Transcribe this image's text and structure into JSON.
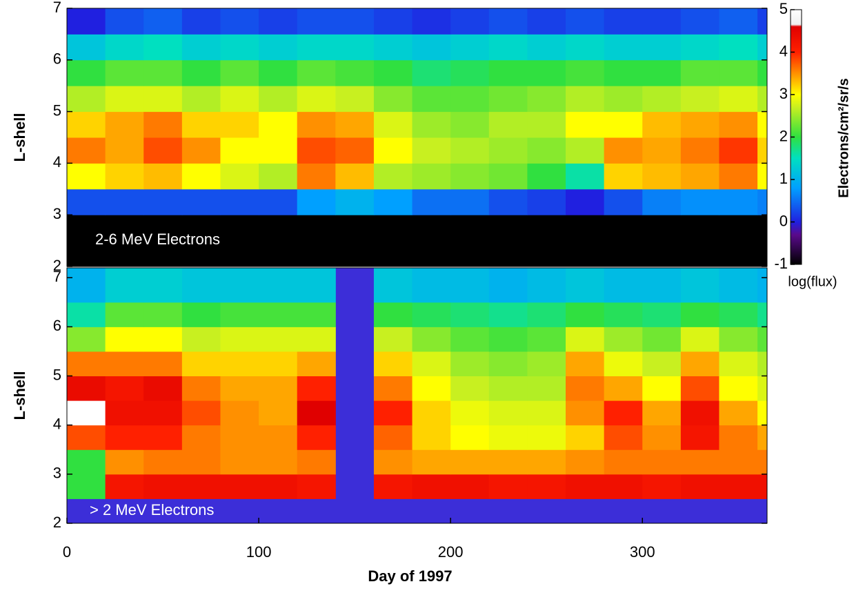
{
  "chart_data": [
    {
      "type": "heatmap",
      "annotation": "2-6 MeV Electrons",
      "ylabel": "L-shell",
      "background": "#000000",
      "xlim": [
        0,
        365
      ],
      "ylim": [
        2,
        7
      ],
      "yticks": [
        2,
        3,
        4,
        5,
        6,
        7
      ],
      "xbins": [
        0,
        20,
        40,
        60,
        80,
        100,
        120,
        140,
        160,
        180,
        200,
        220,
        240,
        260,
        280,
        300,
        320,
        340,
        360,
        365
      ],
      "ybins": [
        2,
        2.5,
        3,
        3.5,
        4,
        4.5,
        5,
        5.5,
        6,
        6.5,
        7
      ],
      "z": [
        [
          -1,
          -1,
          -1,
          -1,
          -1,
          -1,
          -1,
          -1,
          -1,
          -1,
          -1,
          -1,
          -1,
          -1,
          -1,
          -1,
          -1,
          -1,
          -1
        ],
        [
          -1,
          -1,
          -1,
          -1,
          -1,
          -1,
          -1,
          -1,
          -1,
          -1,
          -1,
          -1,
          -1,
          -1,
          -1,
          -1,
          -1,
          -1,
          -1
        ],
        [
          0.3,
          0.3,
          0.3,
          0.3,
          0.3,
          0.3,
          0.8,
          1.0,
          0.8,
          0.5,
          0.5,
          0.3,
          0.2,
          0,
          0.3,
          0.6,
          0.7,
          0.7,
          0.6
        ],
        [
          3,
          3.2,
          3.3,
          3,
          2.8,
          2.6,
          3.6,
          3.3,
          2.6,
          2.5,
          2.4,
          2.3,
          2.0,
          1.6,
          3.2,
          3.3,
          3.4,
          3.6,
          3.0
        ],
        [
          3.6,
          3.4,
          3.8,
          3.5,
          3.0,
          3.0,
          3.8,
          3.7,
          3.0,
          2.7,
          2.6,
          2.5,
          2.4,
          2.6,
          3.5,
          3.4,
          3.6,
          3.9,
          3.2
        ],
        [
          3.2,
          3.4,
          3.6,
          3.2,
          3.2,
          3.0,
          3.5,
          3.4,
          2.8,
          2.5,
          2.4,
          2.6,
          2.6,
          3.0,
          3.0,
          3.3,
          3.4,
          3.5,
          3.0
        ],
        [
          2.6,
          2.8,
          2.8,
          2.6,
          2.8,
          2.6,
          2.8,
          2.7,
          2.4,
          2.2,
          2.2,
          2.3,
          2.4,
          2.6,
          2.5,
          2.6,
          2.7,
          2.8,
          2.6
        ],
        [
          2.0,
          2.2,
          2.2,
          2.0,
          2.2,
          2.0,
          2.2,
          2.1,
          2.0,
          1.8,
          1.9,
          2.0,
          2.0,
          2.1,
          2.0,
          2.0,
          2.2,
          2.2,
          2.0
        ],
        [
          1.2,
          1.4,
          1.5,
          1.3,
          1.4,
          1.3,
          1.4,
          1.4,
          1.3,
          1.2,
          1.3,
          1.4,
          1.3,
          1.4,
          1.3,
          1.3,
          1.4,
          1.5,
          1.3
        ],
        [
          0,
          0.3,
          0.4,
          0.2,
          0.3,
          0.2,
          0.3,
          0.3,
          0.2,
          0.1,
          0.2,
          0.3,
          0.2,
          0.3,
          0.2,
          0.2,
          0.3,
          0.4,
          0.2
        ]
      ],
      "colorbar": {
        "label": "Electrons/cm²/sr/s",
        "sublabel": "log(flux)",
        "zlim": [
          -1,
          5
        ],
        "zticks": [
          -1,
          0,
          1,
          2,
          3,
          4,
          5
        ],
        "colorscale": [
          [
            -1,
            "#000000"
          ],
          [
            -0.3,
            "#5a0a8c"
          ],
          [
            0,
            "#2020e0"
          ],
          [
            0.8,
            "#00a0ff"
          ],
          [
            1.5,
            "#00e0c0"
          ],
          [
            2,
            "#30e040"
          ],
          [
            2.7,
            "#c8f020"
          ],
          [
            3,
            "#ffff00"
          ],
          [
            3.5,
            "#ff9000"
          ],
          [
            4,
            "#ff2000"
          ],
          [
            4.6,
            "#e00000"
          ],
          [
            4.65,
            "#f0f0f0"
          ],
          [
            5,
            "#ffffff"
          ]
        ]
      }
    },
    {
      "type": "heatmap",
      "annotation": "> 2 MeV Electrons",
      "ylabel": "L-shell",
      "xlabel": "Day of 1997",
      "background": "#3c2ed8",
      "xlim": [
        0,
        365
      ],
      "ylim": [
        2,
        7.2
      ],
      "yticks": [
        2,
        3,
        4,
        5,
        6,
        7
      ],
      "xticks": [
        0,
        100,
        200,
        300
      ],
      "xbins": [
        0,
        20,
        40,
        60,
        80,
        100,
        120,
        140,
        160,
        180,
        200,
        220,
        240,
        260,
        280,
        300,
        320,
        340,
        360,
        365
      ],
      "ybins": [
        2,
        2.5,
        3,
        3.5,
        4,
        4.5,
        5,
        5.5,
        6,
        6.5,
        7.2
      ],
      "z": [
        [
          null,
          null,
          null,
          null,
          null,
          null,
          null,
          null,
          null,
          null,
          null,
          null,
          null,
          null,
          null,
          null,
          null,
          null,
          null
        ],
        [
          2.0,
          4.2,
          4.3,
          4.3,
          4.3,
          4.3,
          4.2,
          null,
          4.2,
          4.3,
          4.3,
          4.2,
          4.2,
          4.3,
          4.3,
          4.2,
          4.3,
          4.3,
          4.3
        ],
        [
          2.0,
          3.5,
          3.6,
          3.6,
          3.5,
          3.5,
          3.6,
          null,
          3.5,
          3.4,
          3.4,
          3.4,
          3.4,
          3.5,
          3.6,
          3.6,
          3.6,
          3.6,
          3.6
        ],
        [
          3.8,
          4.0,
          4.0,
          3.6,
          3.5,
          3.5,
          4.0,
          null,
          3.7,
          3.2,
          3.0,
          2.9,
          2.9,
          3.2,
          3.8,
          3.5,
          4.2,
          3.6,
          3.4
        ],
        [
          5.0,
          4.3,
          4.3,
          3.8,
          3.5,
          3.4,
          4.6,
          null,
          4.0,
          3.2,
          2.9,
          2.8,
          2.8,
          3.5,
          4.0,
          3.4,
          4.3,
          3.4,
          3.0
        ],
        [
          4.4,
          4.2,
          4.4,
          3.6,
          3.4,
          3.4,
          4.0,
          null,
          3.6,
          3.0,
          2.7,
          2.6,
          2.6,
          3.6,
          3.4,
          3.0,
          3.8,
          3.0,
          2.8
        ],
        [
          3.6,
          3.6,
          3.6,
          3.2,
          3.2,
          3.2,
          3.4,
          null,
          3.2,
          2.8,
          2.5,
          2.4,
          2.5,
          3.4,
          2.9,
          2.7,
          3.4,
          2.8,
          2.6
        ],
        [
          2.4,
          3.0,
          3.0,
          2.7,
          2.8,
          2.8,
          2.8,
          null,
          2.7,
          2.4,
          2.2,
          2.1,
          2.2,
          2.8,
          2.5,
          2.3,
          2.8,
          2.4,
          2.2
        ],
        [
          1.6,
          2.2,
          2.2,
          2.0,
          2.1,
          2.1,
          2.1,
          null,
          2.0,
          1.9,
          1.8,
          1.7,
          1.8,
          2.0,
          1.9,
          1.8,
          2.0,
          1.9,
          1.7
        ],
        [
          1.0,
          1.3,
          1.3,
          1.2,
          1.2,
          1.2,
          1.2,
          null,
          1.2,
          1.1,
          1.1,
          1.0,
          1.1,
          1.2,
          1.1,
          1.1,
          1.2,
          1.1,
          1.0
        ]
      ]
    }
  ]
}
